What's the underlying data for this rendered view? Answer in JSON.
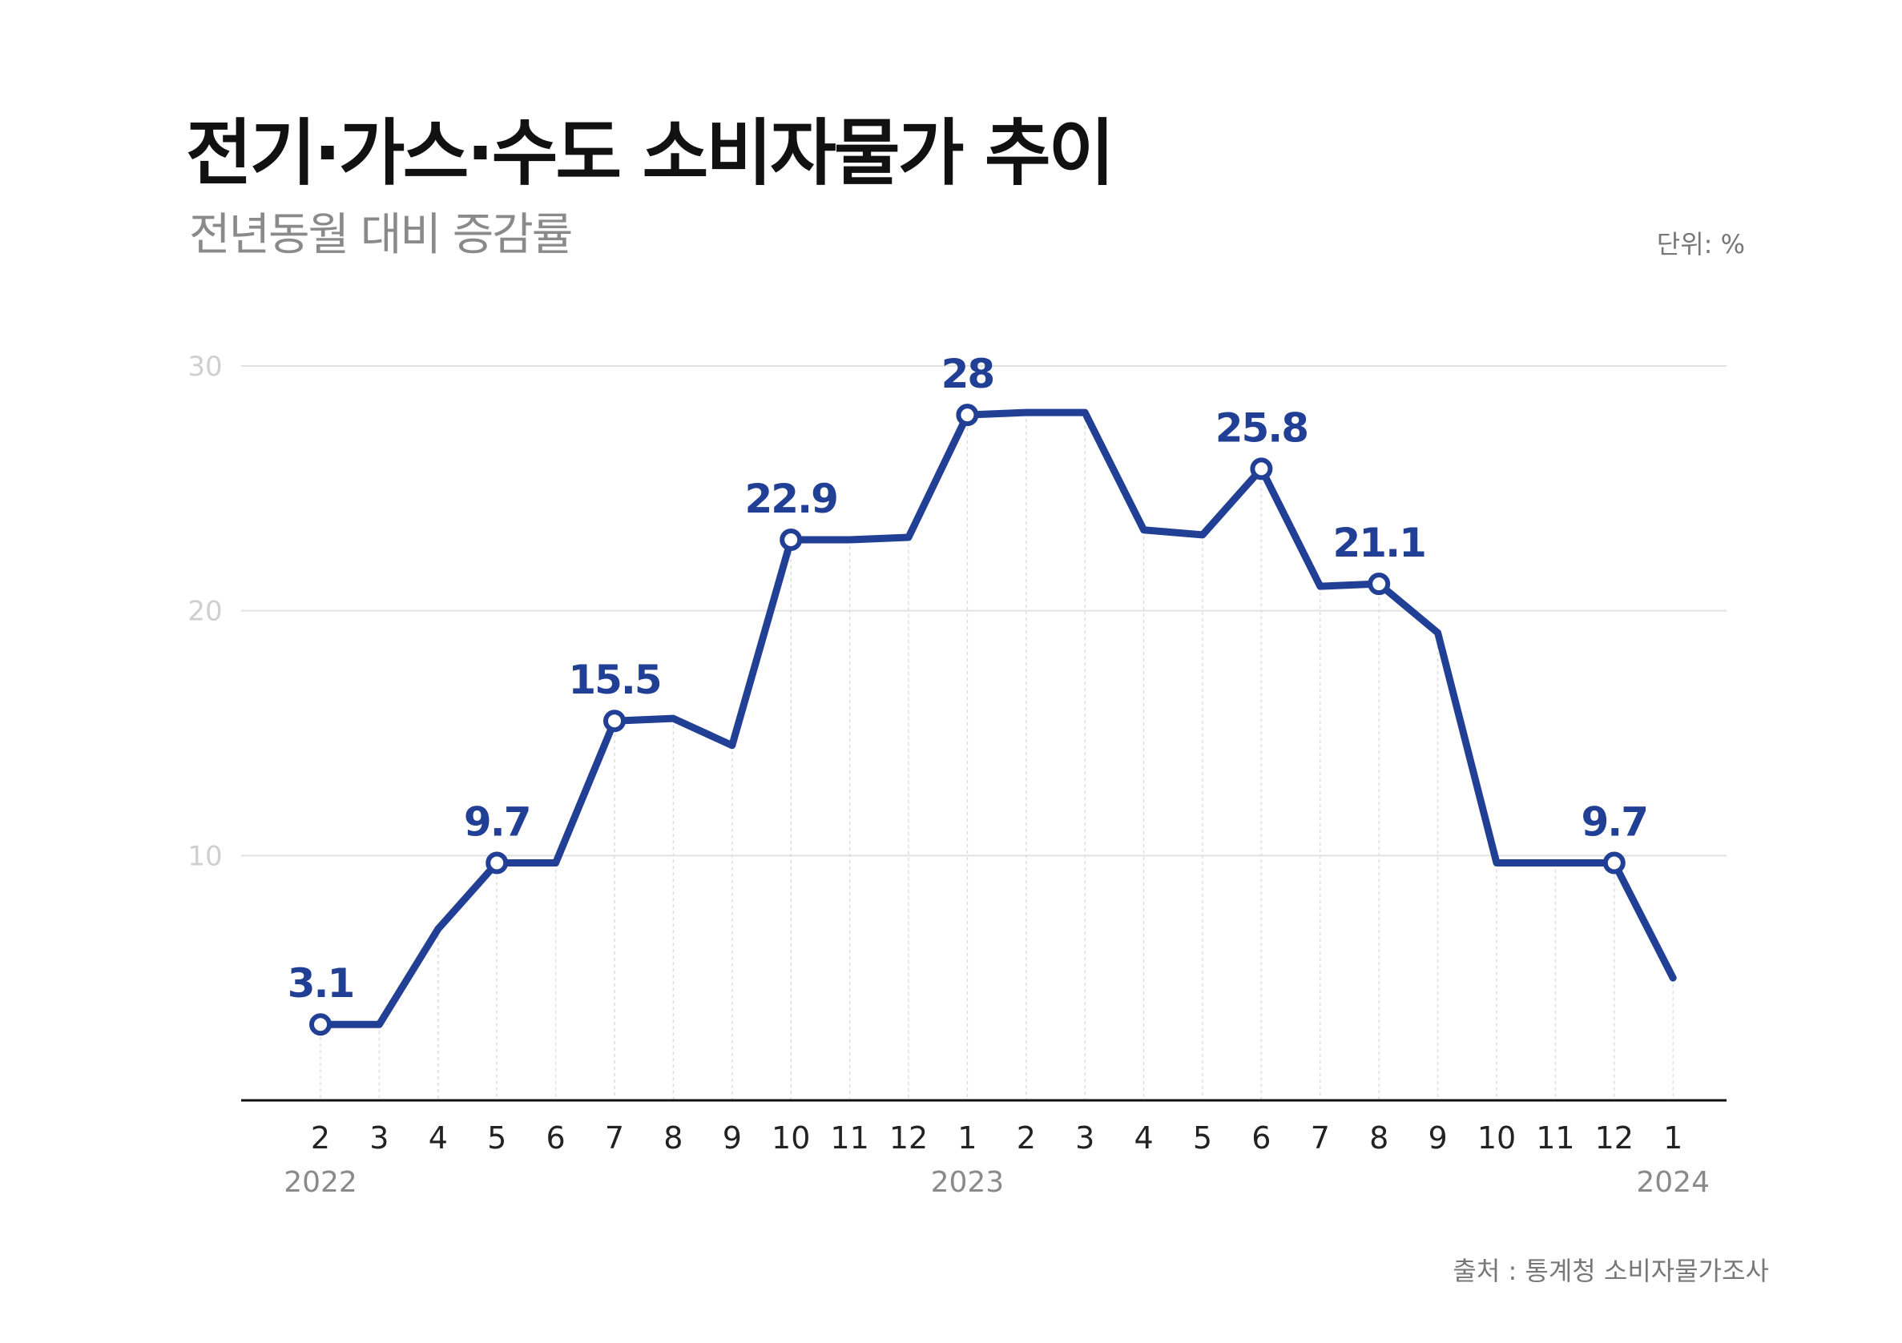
{
  "title": "전기·가스·수도 소비자물가 추이",
  "subtitle": "전년동월 대비 증감률",
  "unit": "단위: %",
  "source": "출처 : 통계청 소비자물가조사",
  "colors": {
    "line": "#213f94",
    "grid": "#e2e2e2",
    "axis": "#111111",
    "ytick": "#cfcfcf",
    "year": "#8a8a8a"
  },
  "chart_data": {
    "type": "line",
    "x": [
      "2",
      "3",
      "4",
      "5",
      "6",
      "7",
      "8",
      "9",
      "10",
      "11",
      "12",
      "1",
      "2",
      "3",
      "4",
      "5",
      "6",
      "7",
      "8",
      "9",
      "10",
      "11",
      "12",
      "1"
    ],
    "years": [
      {
        "label": "2022",
        "index": 0
      },
      {
        "label": "2023",
        "index": 11
      },
      {
        "label": "2024",
        "index": 23
      }
    ],
    "values": [
      3.1,
      3.1,
      7.0,
      9.7,
      9.7,
      15.5,
      15.6,
      14.5,
      22.9,
      22.9,
      23.0,
      28.0,
      28.1,
      28.1,
      23.3,
      23.1,
      25.8,
      21.0,
      21.1,
      19.1,
      9.7,
      9.7,
      9.7,
      5.0
    ],
    "labeled_points": [
      {
        "index": 0,
        "label": "3.1"
      },
      {
        "index": 3,
        "label": "9.7"
      },
      {
        "index": 5,
        "label": "15.5"
      },
      {
        "index": 8,
        "label": "22.9"
      },
      {
        "index": 11,
        "label": "28"
      },
      {
        "index": 16,
        "label": "25.8"
      },
      {
        "index": 18,
        "label": "21.1"
      },
      {
        "index": 22,
        "label": "9.7"
      }
    ],
    "yticks": [
      "10",
      "20",
      "30"
    ],
    "ylim": [
      0,
      30
    ],
    "grid": true,
    "legend": "none"
  }
}
